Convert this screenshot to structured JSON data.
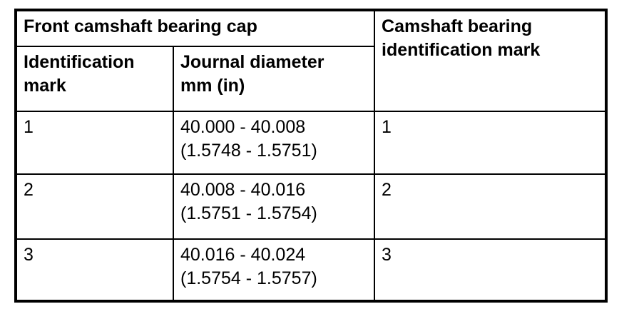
{
  "colors": {
    "text": "#000000",
    "border": "#000000",
    "background": "#ffffff"
  },
  "table": {
    "headers": {
      "front_camshaft_bearing_cap": "Front camshaft bearing cap",
      "camshaft_bearing_identification_mark": "Camshaft bearing identification mark",
      "identification_mark": "Identification mark",
      "journal_diameter_mm_in": "Journal diameter\nmm (in)"
    },
    "rows": [
      {
        "identification_mark": "1",
        "journal_diameter": "40.000 - 40.008\n(1.5748 - 1.5751)",
        "camshaft_bearing_identification_mark": "1"
      },
      {
        "identification_mark": "2",
        "journal_diameter": "40.008 - 40.016\n(1.5751 - 1.5754)",
        "camshaft_bearing_identification_mark": "2"
      },
      {
        "identification_mark": "3",
        "journal_diameter": "40.016 - 40.024\n(1.5754 - 1.5757)",
        "camshaft_bearing_identification_mark": "3"
      }
    ]
  }
}
